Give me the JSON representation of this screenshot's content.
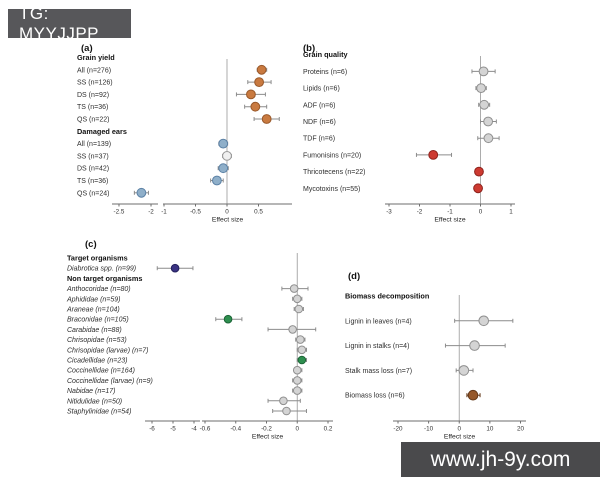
{
  "overlay": {
    "tag_label": "TG: MYYJJPP",
    "watermark_label": "www.jh-9y.com",
    "tag_bg": "#57575a",
    "watermark_bg": "#4a4a4c"
  },
  "colors": {
    "orange": {
      "fill": "#c97a40",
      "stroke": "#98582a"
    },
    "blue": {
      "fill": "#8fafc9",
      "stroke": "#5b81a5"
    },
    "gray": {
      "fill": "#d4d4d4",
      "stroke": "#8f8f8f"
    },
    "white": {
      "fill": "#f0f0f0",
      "stroke": "#9a9a9a"
    },
    "red": {
      "fill": "#cd3a31",
      "stroke": "#8e221c"
    },
    "navy": {
      "fill": "#3a3383",
      "stroke": "#23205c"
    },
    "green": {
      "fill": "#2e8f4f",
      "stroke": "#1b6436"
    },
    "brown": {
      "fill": "#96582a",
      "stroke": "#64391a"
    }
  },
  "chart_data": [
    {
      "id": "a",
      "type": "forest",
      "panel_label": "(a)",
      "xlabel": "Effect size",
      "axis_segments": [
        {
          "ticks": [
            -2.5,
            -2
          ]
        },
        {
          "ticks": [
            -1,
            -0.5,
            0,
            0.5
          ]
        }
      ],
      "rows": [
        {
          "label": "Grain yield",
          "header": true
        },
        {
          "label": "All (n=276)",
          "value": 0.55,
          "ci": [
            0.48,
            0.63
          ],
          "color": "orange"
        },
        {
          "label": "SS (n=126)",
          "value": 0.51,
          "ci": [
            0.33,
            0.7
          ],
          "color": "orange"
        },
        {
          "label": "DS (n=92)",
          "value": 0.38,
          "ci": [
            0.15,
            0.61
          ],
          "color": "orange"
        },
        {
          "label": "TS (n=36)",
          "value": 0.45,
          "ci": [
            0.28,
            0.63
          ],
          "color": "orange"
        },
        {
          "label": "QS (n=22)",
          "value": 0.63,
          "ci": [
            0.43,
            0.83
          ],
          "color": "orange"
        },
        {
          "label": "Damaged ears",
          "header": true
        },
        {
          "label": "All (n=139)",
          "value": -0.06,
          "ci": [
            -0.13,
            0.01
          ],
          "color": "blue"
        },
        {
          "label": "SS (n=37)",
          "value": 0.0,
          "ci": [
            -0.07,
            0.07
          ],
          "color": "white"
        },
        {
          "label": "DS (n=42)",
          "value": -0.06,
          "ci": [
            -0.14,
            0.02
          ],
          "color": "blue"
        },
        {
          "label": "TS (n=36)",
          "value": -0.16,
          "ci": [
            -0.26,
            -0.06
          ],
          "color": "blue"
        },
        {
          "label": "QS (n=24)",
          "value": -2.15,
          "ci": [
            -2.26,
            -2.04
          ],
          "color": "blue"
        }
      ]
    },
    {
      "id": "b",
      "type": "forest",
      "panel_label": "(b)",
      "xlabel": "Effect size",
      "axis_segments": [
        {
          "ticks": [
            -3,
            -2,
            -1,
            0,
            1
          ]
        }
      ],
      "rows": [
        {
          "label": "Grain quality",
          "header": true
        },
        {
          "label": "Proteins (n=6)",
          "value": 0.1,
          "ci": [
            -0.28,
            0.48
          ],
          "color": "gray"
        },
        {
          "label": "Lipids (n=6)",
          "value": 0.02,
          "ci": [
            -0.15,
            0.19
          ],
          "color": "gray"
        },
        {
          "label": "ADF (n=6)",
          "value": 0.12,
          "ci": [
            -0.06,
            0.3
          ],
          "color": "gray"
        },
        {
          "label": "NDF (n=6)",
          "value": 0.25,
          "ci": [
            0.0,
            0.52
          ],
          "color": "gray"
        },
        {
          "label": "TDF (n=6)",
          "value": 0.26,
          "ci": [
            -0.09,
            0.61
          ],
          "color": "gray"
        },
        {
          "label": "Fumonisins (n=20)",
          "value": -1.55,
          "ci": [
            -2.1,
            -0.95
          ],
          "color": "red"
        },
        {
          "label": "Thricotecens (n=22)",
          "value": -0.05,
          "ci": [
            -0.13,
            0.03
          ],
          "color": "red"
        },
        {
          "label": "Mycotoxins (n=55)",
          "value": -0.08,
          "ci": [
            -0.16,
            0.0
          ],
          "color": "red"
        }
      ]
    },
    {
      "id": "c",
      "type": "forest",
      "panel_label": "(c)",
      "xlabel": "Effect size",
      "axis_segments": [
        {
          "ticks": [
            -6,
            -5,
            -4
          ]
        },
        {
          "ticks": [
            -0.6,
            -0.4,
            -0.2,
            0,
            0.2
          ]
        }
      ],
      "rows": [
        {
          "label": "Target organisms",
          "header": true
        },
        {
          "label": "Diabrotica spp. (n=99)",
          "value": -4.9,
          "ci": [
            -5.75,
            -4.05
          ],
          "color": "navy"
        },
        {
          "label": "Non target organisms",
          "header": true
        },
        {
          "label": "Anthocoridae (n=80)",
          "value": -0.02,
          "ci": [
            -0.1,
            0.07
          ],
          "color": "gray"
        },
        {
          "label": "Aphididae (n=59)",
          "value": 0.0,
          "ci": [
            -0.03,
            0.03
          ],
          "color": "gray"
        },
        {
          "label": "Araneae (n=104)",
          "value": 0.01,
          "ci": [
            -0.02,
            0.04
          ],
          "color": "gray"
        },
        {
          "label": "Braconidae (n=105)",
          "value": -0.45,
          "ci": [
            -0.53,
            -0.36
          ],
          "color": "green"
        },
        {
          "label": "Carabidae (n=88)",
          "value": -0.03,
          "ci": [
            -0.19,
            0.12
          ],
          "color": "gray"
        },
        {
          "label": "Chrisopidae (n=53)",
          "value": 0.02,
          "ci": [
            -0.01,
            0.05
          ],
          "color": "gray"
        },
        {
          "label": "Chrisopidae (larvae) (n=7)",
          "value": 0.03,
          "ci": [
            0.0,
            0.06
          ],
          "color": "gray"
        },
        {
          "label": "Cicadellidae (n=23)",
          "value": 0.03,
          "ci": [
            0.0,
            0.06
          ],
          "color": "green"
        },
        {
          "label": "Coccinellidae (n=164)",
          "value": 0.0,
          "ci": [
            -0.02,
            0.03
          ],
          "color": "gray"
        },
        {
          "label": "Coccinellidae (larvae) (n=9)",
          "value": 0.0,
          "ci": [
            -0.03,
            0.03
          ],
          "color": "gray"
        },
        {
          "label": "Nabidae (n=17)",
          "value": 0.0,
          "ci": [
            -0.03,
            0.03
          ],
          "color": "gray"
        },
        {
          "label": "Nitidulidae (n=50)",
          "value": -0.09,
          "ci": [
            -0.19,
            0.02
          ],
          "color": "gray"
        },
        {
          "label": "Staphylinidae (n=54)",
          "value": -0.07,
          "ci": [
            -0.16,
            0.06
          ],
          "color": "gray"
        }
      ]
    },
    {
      "id": "d",
      "type": "forest",
      "panel_label": "(d)",
      "xlabel": "Effect size",
      "axis_segments": [
        {
          "ticks": [
            -20,
            -10,
            0,
            10,
            20
          ]
        }
      ],
      "rows": [
        {
          "label": "Biomass decomposition",
          "header": true
        },
        {
          "label": "Lignin in leaves (n=4)",
          "value": 8.0,
          "ci": [
            -1.5,
            17.5
          ],
          "color": "gray"
        },
        {
          "label": "Lignin in stalks (n=4)",
          "value": 5.0,
          "ci": [
            -4.5,
            15.0
          ],
          "color": "gray"
        },
        {
          "label": "Stalk mass loss (n=7)",
          "value": 1.5,
          "ci": [
            -1.0,
            4.5
          ],
          "color": "gray"
        },
        {
          "label": "Biomass loss (n=6)",
          "value": 4.5,
          "ci": [
            2.5,
            6.8
          ],
          "color": "brown",
          "whisker": "brown"
        }
      ]
    }
  ]
}
